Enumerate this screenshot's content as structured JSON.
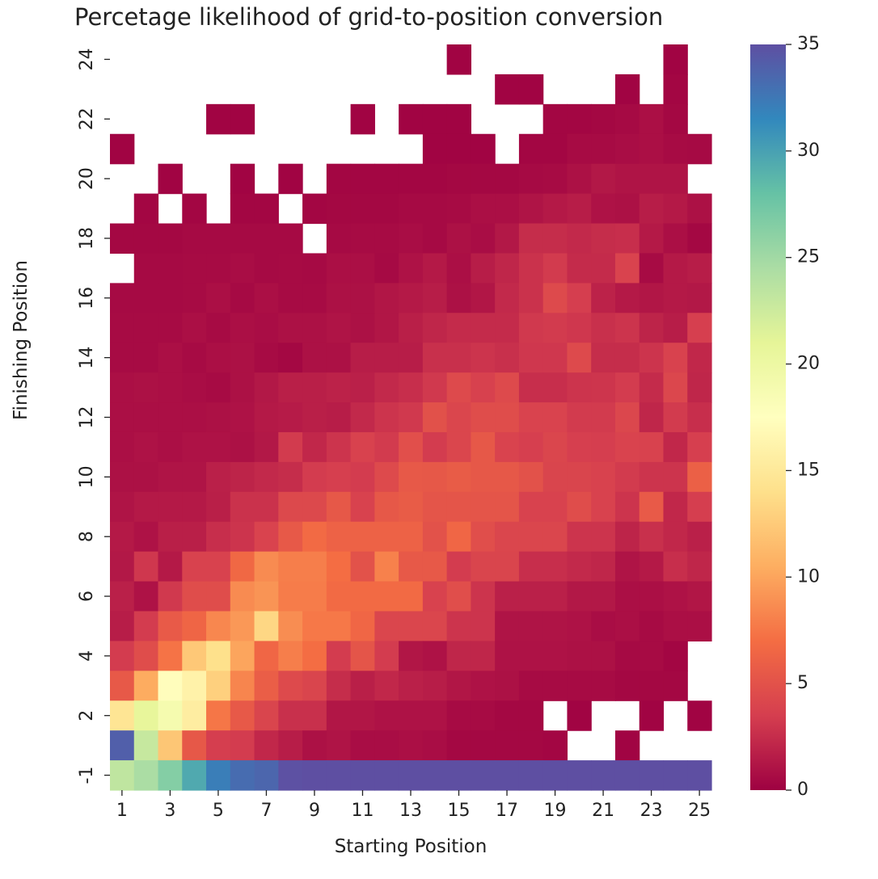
{
  "chart_data": {
    "type": "heatmap",
    "title": "Percetage likelihood of grid-to-position conversion",
    "xlabel": "Starting Position",
    "ylabel": "Finishing Position",
    "x_categories": [
      1,
      2,
      3,
      4,
      5,
      6,
      7,
      8,
      9,
      10,
      11,
      12,
      13,
      14,
      15,
      16,
      17,
      18,
      19,
      20,
      21,
      22,
      23,
      24,
      25
    ],
    "x_tick_labels": [
      "1",
      "3",
      "5",
      "7",
      "9",
      "11",
      "13",
      "15",
      "17",
      "19",
      "21",
      "23",
      "25"
    ],
    "y_categories": [
      24,
      23,
      22,
      21,
      20,
      19,
      18,
      17,
      16,
      15,
      14,
      13,
      12,
      11,
      10,
      9,
      8,
      7,
      6,
      5,
      4,
      3,
      2,
      1,
      -1
    ],
    "y_tick_labels": [
      "24",
      "22",
      "20",
      "18",
      "16",
      "14",
      "12",
      "10",
      "8",
      "6",
      "4",
      "2",
      "-1"
    ],
    "colorbar": {
      "min": 0,
      "max": 35,
      "ticks": [
        0,
        5,
        10,
        15,
        20,
        25,
        30,
        35
      ],
      "colormap": "Spectral"
    },
    "missing_note": "null = empty cell",
    "values": [
      [
        null,
        null,
        null,
        null,
        null,
        null,
        null,
        null,
        null,
        null,
        null,
        null,
        null,
        null,
        0.2,
        null,
        null,
        null,
        null,
        null,
        null,
        null,
        null,
        0.2,
        null
      ],
      [
        null,
        null,
        null,
        null,
        null,
        null,
        null,
        null,
        null,
        null,
        null,
        null,
        null,
        null,
        null,
        null,
        0.2,
        0.2,
        null,
        null,
        null,
        0.2,
        null,
        0.3,
        null
      ],
      [
        null,
        null,
        null,
        null,
        0.2,
        0.2,
        null,
        null,
        null,
        null,
        0.2,
        null,
        0.2,
        0.2,
        0.2,
        null,
        null,
        null,
        0.3,
        0.3,
        0.4,
        0.5,
        0.8,
        0.4,
        null
      ],
      [
        0.2,
        null,
        null,
        null,
        null,
        null,
        null,
        null,
        null,
        null,
        null,
        null,
        null,
        0.2,
        0.2,
        0.2,
        null,
        0.3,
        0.3,
        0.6,
        0.6,
        0.7,
        0.8,
        0.6,
        0.5
      ],
      [
        null,
        null,
        0.2,
        null,
        null,
        0.2,
        null,
        0.2,
        null,
        0.3,
        0.3,
        0.3,
        0.3,
        0.3,
        0.4,
        0.4,
        0.4,
        0.5,
        0.6,
        0.9,
        1.3,
        1.1,
        1.1,
        1.1,
        null
      ],
      [
        null,
        0.3,
        null,
        0.3,
        null,
        0.3,
        0.3,
        null,
        0.3,
        0.4,
        0.4,
        0.4,
        0.5,
        0.5,
        0.6,
        0.8,
        0.8,
        1.1,
        1.4,
        1.6,
        1.0,
        0.9,
        1.6,
        1.4,
        0.9
      ],
      [
        0.4,
        0.4,
        0.4,
        0.5,
        0.5,
        0.5,
        0.5,
        0.5,
        null,
        0.5,
        0.6,
        0.6,
        0.7,
        0.5,
        0.9,
        0.7,
        1.3,
        2.5,
        2.5,
        2.3,
        2.5,
        2.6,
        1.4,
        0.8,
        0.4
      ],
      [
        null,
        0.5,
        0.5,
        0.6,
        0.6,
        0.7,
        0.5,
        0.6,
        0.5,
        0.8,
        0.8,
        0.5,
        1.0,
        1.4,
        0.8,
        1.6,
        2.1,
        2.8,
        3.3,
        2.4,
        2.4,
        3.9,
        0.6,
        1.4,
        1.6
      ],
      [
        0.5,
        0.5,
        0.5,
        0.6,
        0.8,
        0.5,
        0.8,
        0.6,
        0.6,
        0.9,
        0.9,
        1.2,
        1.4,
        1.6,
        0.9,
        1.2,
        2.3,
        2.8,
        4.4,
        3.5,
        1.9,
        1.4,
        1.2,
        1.4,
        1.3
      ],
      [
        0.6,
        0.6,
        0.6,
        0.8,
        0.6,
        0.8,
        0.7,
        0.9,
        0.9,
        1.1,
        0.9,
        1.2,
        1.7,
        2.1,
        2.4,
        2.4,
        2.4,
        3.2,
        3.3,
        3.1,
        2.7,
        2.9,
        2.0,
        1.6,
        3.6
      ],
      [
        0.6,
        0.6,
        0.8,
        0.6,
        0.8,
        0.9,
        0.6,
        0.4,
        0.9,
        0.9,
        1.6,
        1.6,
        1.6,
        2.7,
        2.7,
        2.9,
        2.7,
        3.1,
        3.1,
        4.4,
        2.5,
        2.5,
        2.9,
        3.8,
        2.2
      ],
      [
        0.8,
        0.9,
        0.8,
        0.7,
        0.6,
        0.9,
        1.3,
        1.7,
        1.7,
        1.9,
        1.8,
        2.3,
        2.6,
        3.2,
        4.4,
        3.7,
        4.4,
        2.6,
        2.6,
        2.9,
        3.0,
        3.4,
        2.4,
        4.2,
        2.1
      ],
      [
        0.8,
        0.8,
        0.8,
        0.8,
        0.9,
        1.0,
        1.4,
        1.5,
        1.7,
        1.6,
        2.3,
        2.9,
        3.2,
        4.9,
        4.1,
        4.6,
        4.6,
        3.9,
        3.9,
        3.3,
        3.3,
        4.2,
        2.1,
        3.3,
        2.6
      ],
      [
        0.8,
        1.0,
        0.8,
        1.0,
        1.0,
        0.9,
        1.3,
        3.3,
        2.2,
        2.9,
        3.8,
        3.3,
        4.8,
        3.4,
        4.1,
        5.4,
        3.9,
        3.6,
        4.1,
        3.6,
        3.5,
        3.9,
        3.8,
        2.2,
        3.6
      ],
      [
        0.9,
        0.9,
        1.1,
        1.1,
        1.8,
        2.0,
        2.3,
        2.5,
        3.4,
        3.6,
        3.4,
        4.4,
        5.5,
        5.4,
        5.7,
        5.4,
        5.4,
        5.0,
        4.0,
        4.0,
        3.8,
        3.3,
        2.9,
        2.9,
        6.0
      ],
      [
        1.1,
        1.4,
        1.4,
        1.4,
        1.7,
        2.8,
        2.8,
        4.3,
        4.3,
        5.4,
        3.8,
        5.4,
        5.7,
        5.2,
        5.2,
        5.2,
        5.2,
        3.8,
        3.8,
        4.6,
        3.8,
        2.9,
        5.6,
        2.2,
        3.5
      ],
      [
        1.4,
        1.0,
        1.7,
        1.7,
        2.6,
        2.9,
        3.9,
        5.5,
        6.8,
        6.2,
        6.2,
        6.2,
        6.2,
        5.0,
        6.5,
        4.7,
        4.1,
        4.1,
        4.1,
        2.9,
        2.9,
        2.0,
        2.7,
        2.2,
        1.8
      ],
      [
        1.3,
        3.1,
        1.4,
        3.8,
        3.8,
        6.6,
        8.6,
        7.9,
        7.9,
        7.0,
        5.0,
        8.1,
        5.5,
        5.5,
        3.4,
        4.0,
        4.0,
        2.6,
        2.6,
        2.3,
        2.1,
        1.1,
        1.4,
        2.6,
        2.1
      ],
      [
        1.8,
        1.0,
        3.2,
        4.6,
        4.6,
        8.6,
        9.1,
        7.8,
        7.8,
        6.8,
        6.8,
        6.8,
        6.8,
        3.8,
        4.7,
        2.9,
        1.8,
        1.8,
        1.8,
        1.3,
        1.3,
        0.8,
        0.8,
        1.0,
        1.2
      ],
      [
        1.6,
        3.4,
        5.6,
        6.4,
        8.4,
        9.3,
        13.4,
        8.7,
        7.6,
        7.6,
        6.5,
        4.1,
        4.1,
        4.1,
        2.9,
        2.9,
        1.1,
        1.1,
        1.1,
        1.0,
        0.7,
        0.8,
        0.6,
        0.8,
        0.8
      ],
      [
        3.4,
        4.6,
        7.3,
        12.3,
        14.1,
        10.0,
        6.5,
        7.9,
        7.0,
        3.4,
        5.2,
        3.4,
        1.2,
        1.0,
        2.1,
        2.1,
        1.0,
        1.0,
        1.0,
        0.9,
        0.9,
        0.5,
        0.6,
        0.3,
        null
      ],
      [
        5.5,
        10.4,
        17.3,
        16.0,
        12.9,
        8.3,
        5.9,
        4.4,
        4.0,
        2.5,
        1.7,
        2.2,
        1.8,
        1.6,
        1.2,
        1.0,
        0.9,
        0.6,
        0.6,
        0.6,
        0.6,
        0.4,
        0.4,
        0.4,
        null
      ],
      [
        14.6,
        20.7,
        18.9,
        15.5,
        7.5,
        5.5,
        4.0,
        2.7,
        2.7,
        1.2,
        1.2,
        1.0,
        1.0,
        1.0,
        0.6,
        0.6,
        0.4,
        0.4,
        null,
        0.2,
        null,
        null,
        0.2,
        null,
        0.2
      ],
      [
        34.0,
        22.9,
        12.2,
        5.4,
        3.5,
        3.4,
        2.2,
        1.6,
        0.9,
        1.1,
        0.7,
        0.7,
        0.8,
        0.7,
        0.4,
        0.4,
        0.4,
        0.4,
        0.3,
        null,
        null,
        0.2,
        null,
        null,
        null
      ],
      [
        23.3,
        24.5,
        26.5,
        29.5,
        32.1,
        33.2,
        33.6,
        34.9,
        35.0,
        35.0,
        35.0,
        35.0,
        35.0,
        35.0,
        35.0,
        35.0,
        35.0,
        35.0,
        35.0,
        35.0,
        35.0,
        35.0,
        35.0,
        35.0,
        35.0
      ]
    ]
  }
}
